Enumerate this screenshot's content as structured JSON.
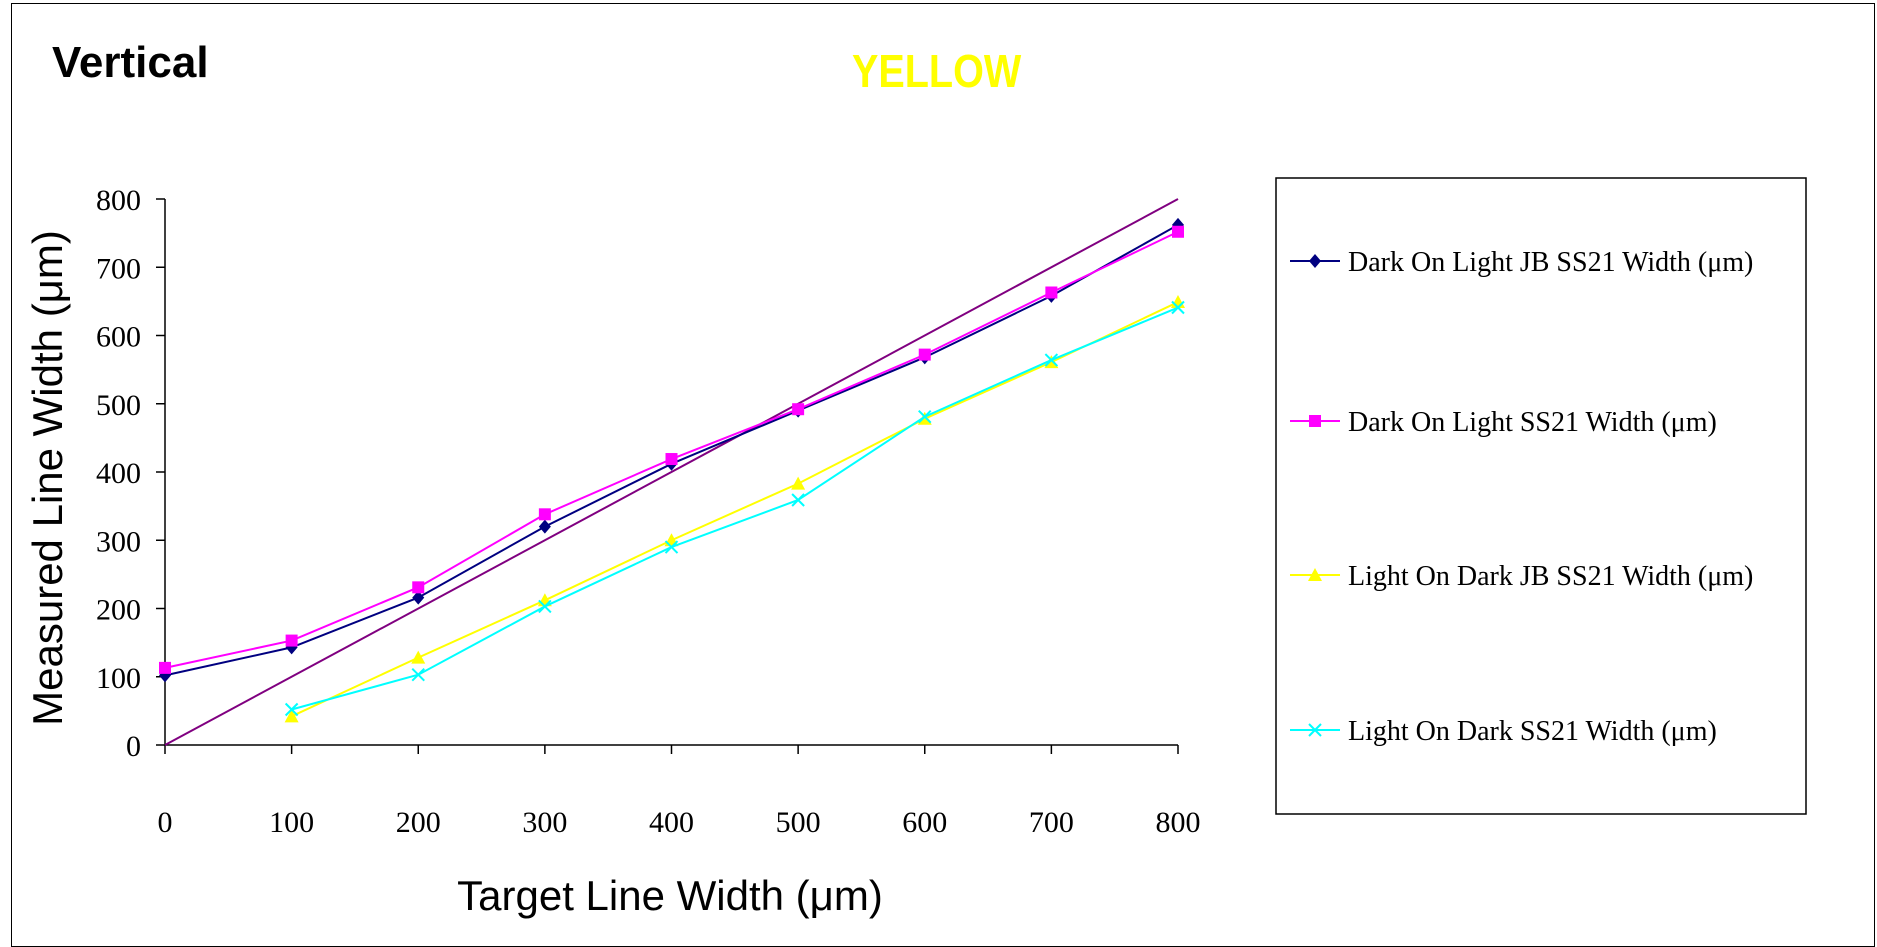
{
  "corner_label": "Vertical",
  "chart_data": {
    "type": "line",
    "title": "YELLOW",
    "xlabel": "Target Line Width (μm)",
    "ylabel": "Measured Line Width (μm)",
    "xlim": [
      0,
      800
    ],
    "ylim": [
      0,
      800
    ],
    "x_ticks": [
      "0",
      "100",
      "200",
      "300",
      "400",
      "500",
      "600",
      "700",
      "800"
    ],
    "y_ticks": [
      "0",
      "100",
      "200",
      "300",
      "400",
      "500",
      "600",
      "700",
      "800"
    ],
    "grid": false,
    "legend_position": "right",
    "reference_line": {
      "x": [
        0,
        800
      ],
      "y": [
        0,
        800
      ],
      "color": "#800080"
    },
    "series": [
      {
        "name": "Dark On Light JB SS21 Width (μm)",
        "color": "#000080",
        "marker": "diamond",
        "x": [
          0,
          100,
          200,
          300,
          400,
          500,
          600,
          700,
          800
        ],
        "y": [
          102,
          143,
          216,
          320,
          412,
          490,
          568,
          658,
          762
        ]
      },
      {
        "name": "Dark On Light SS21 Width (μm)",
        "color": "#ff00ff",
        "marker": "square",
        "x": [
          0,
          100,
          200,
          300,
          400,
          500,
          600,
          700,
          800
        ],
        "y": [
          113,
          153,
          231,
          338,
          419,
          492,
          572,
          663,
          752
        ]
      },
      {
        "name": "Light On Dark JB SS21 Width (μm)",
        "color": "#ffff00",
        "marker": "triangle",
        "x": [
          100,
          200,
          300,
          400,
          500,
          600,
          700,
          800
        ],
        "y": [
          42,
          128,
          212,
          300,
          383,
          478,
          561,
          649
        ]
      },
      {
        "name": "Light On Dark SS21 Width (μm)",
        "color": "#00ffff",
        "marker": "x",
        "x": [
          100,
          200,
          300,
          400,
          500,
          600,
          700,
          800
        ],
        "y": [
          52,
          103,
          203,
          290,
          359,
          481,
          564,
          641
        ]
      }
    ]
  }
}
